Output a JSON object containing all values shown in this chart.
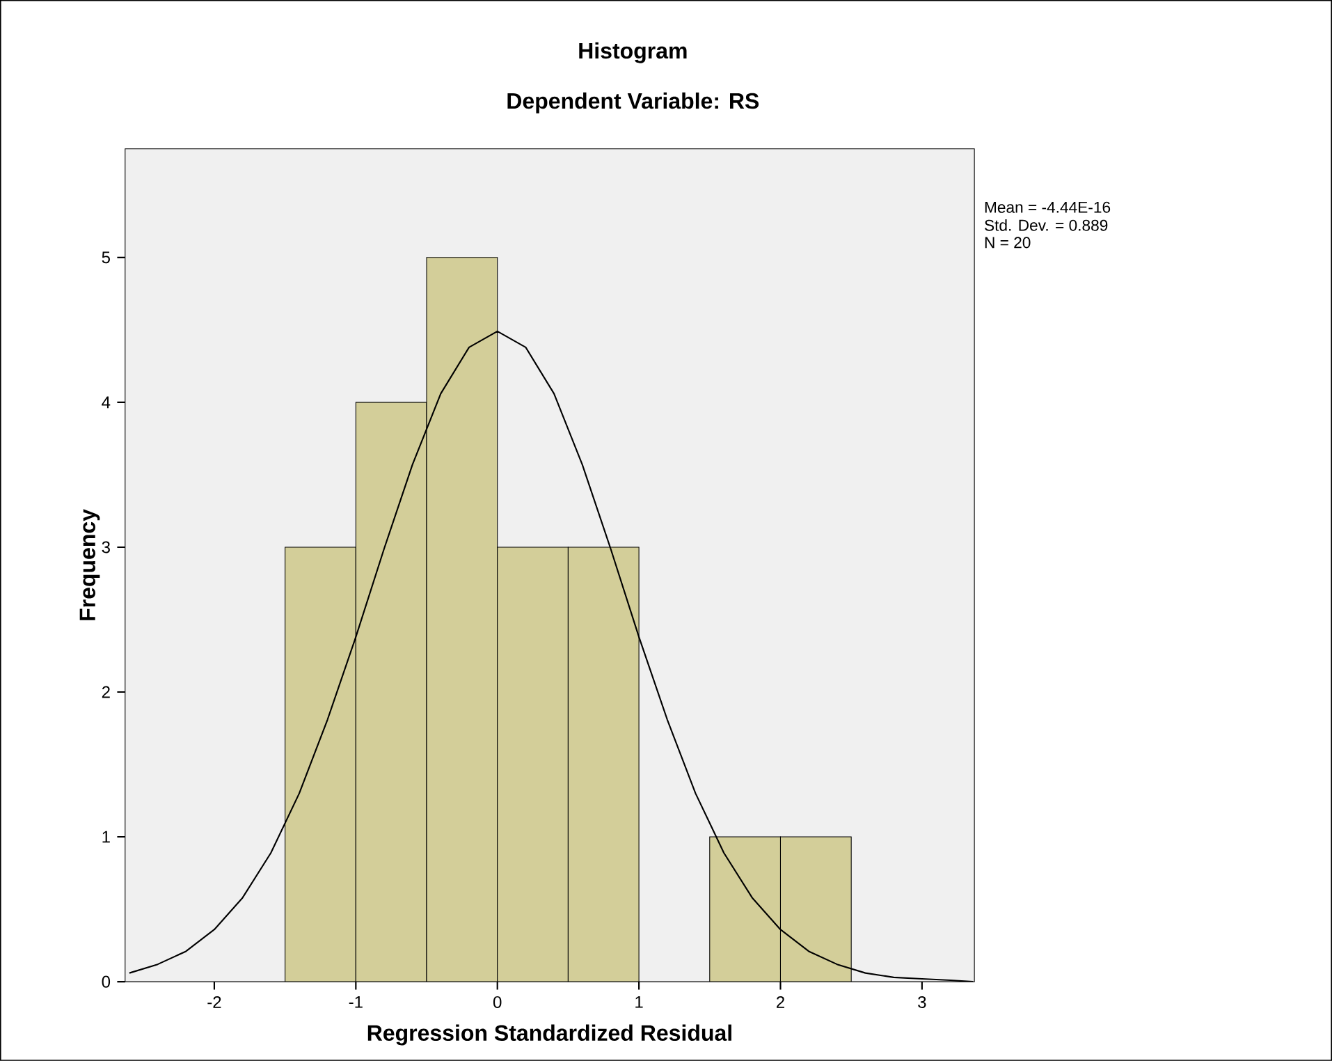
{
  "chart_data": {
    "type": "histogram",
    "title": "Histogram",
    "subtitle": "Dependent Variable: RS",
    "xlabel": "Regression Standardized Residual",
    "ylabel": "Frequency",
    "bins": [
      -1.5,
      -1,
      -0.5,
      0,
      0.5,
      1,
      1.5,
      2,
      2.5
    ],
    "values": [
      3,
      4,
      5,
      3,
      3,
      0,
      1,
      1
    ],
    "color": "#d3ce99",
    "series": [
      {
        "type": "line",
        "color": "#000000",
        "x": [
          -2.6,
          -2.4,
          -2.2,
          -2.0,
          -1.8,
          -1.6,
          -1.4,
          -1.2,
          -1.0,
          -0.8,
          -0.6,
          -0.4,
          -0.2,
          0,
          0.2,
          0.4,
          0.6,
          0.8,
          1.0,
          1.2,
          1.4,
          1.6,
          1.8,
          2.0,
          2.2,
          2.4,
          2.6,
          2.8,
          3.0,
          3.2,
          3.36
        ],
        "values": [
          0.06,
          0.12,
          0.21,
          0.36,
          0.58,
          0.89,
          1.3,
          1.81,
          2.38,
          2.99,
          3.57,
          4.06,
          4.38,
          4.49,
          4.38,
          4.06,
          3.57,
          2.99,
          2.38,
          1.81,
          1.3,
          0.89,
          0.58,
          0.36,
          0.21,
          0.12,
          0.06,
          0.03,
          0.02,
          0.01,
          0.0
        ]
      }
    ],
    "xlim": [
      -2.63,
      3.37
    ],
    "ylim": [
      0,
      5.75
    ],
    "xticks": [
      -2,
      -1,
      0,
      1,
      2,
      3
    ],
    "yticks": [
      0,
      1,
      2,
      3,
      4,
      5
    ],
    "grid": false,
    "annotations": [
      "Mean = -4.44E-16",
      "Std. Dev. = 0.889",
      "N = 20"
    ]
  }
}
